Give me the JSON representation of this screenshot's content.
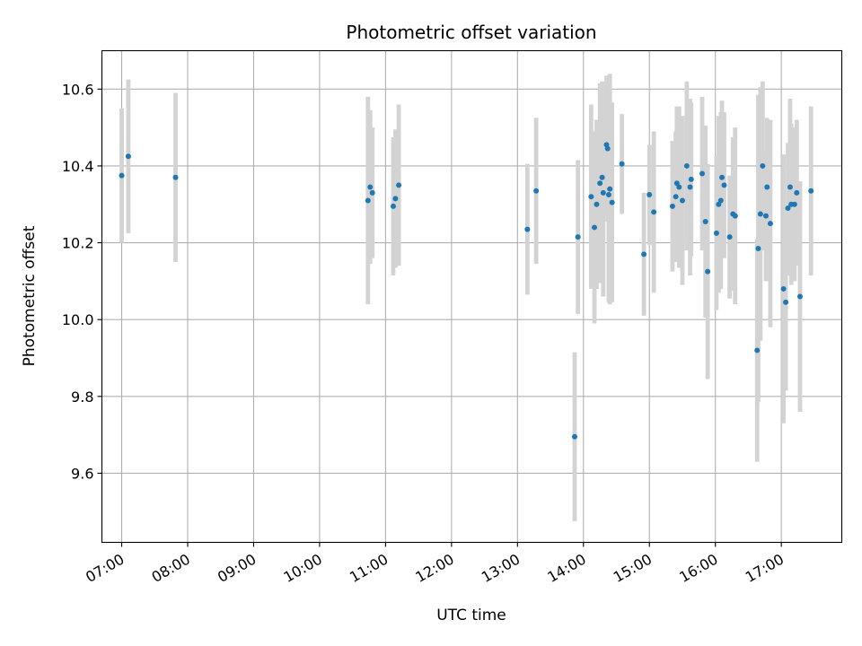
{
  "chart_data": {
    "type": "scatter",
    "title": "Photometric offset variation",
    "xlabel": "UTC time",
    "ylabel": "Photometric offset",
    "xlim": [
      "06:42",
      "17:55"
    ],
    "ylim": [
      9.42,
      10.7
    ],
    "x_ticks": [
      "07:00",
      "08:00",
      "09:00",
      "10:00",
      "11:00",
      "12:00",
      "13:00",
      "14:00",
      "15:00",
      "16:00",
      "17:00"
    ],
    "y_ticks": [
      "9.6",
      "9.8",
      "10.0",
      "10.2",
      "10.4",
      "10.6"
    ],
    "grid": true,
    "marker_color": "#1f77b4",
    "errorbar_color": "#d3d3d3",
    "series": [
      {
        "x": [
          "07:00",
          "07:06",
          "07:49",
          "10:44",
          "10:46",
          "10:48",
          "11:07",
          "11:09",
          "11:12",
          "13:09",
          "13:17",
          "13:52",
          "13:55",
          "14:07",
          "14:10",
          "14:12",
          "14:15",
          "14:17",
          "14:18",
          "14:21",
          "14:22",
          "14:23",
          "14:24",
          "14:26",
          "14:35",
          "14:55",
          "15:00",
          "15:04",
          "15:21",
          "15:24",
          "15:25",
          "15:27",
          "15:30",
          "15:34",
          "15:37",
          "15:38",
          "15:48",
          "15:51",
          "15:53",
          "16:01",
          "16:03",
          "16:05",
          "16:06",
          "16:08",
          "16:13",
          "16:16",
          "16:18",
          "16:38",
          "16:39",
          "16:41",
          "16:43",
          "16:46",
          "16:47",
          "16:50",
          "17:02",
          "17:04",
          "17:06",
          "17:08",
          "17:09",
          "17:12",
          "17:14",
          "17:17",
          "17:27"
        ],
        "y": [
          10.375,
          10.425,
          10.37,
          10.31,
          10.345,
          10.33,
          10.295,
          10.315,
          10.35,
          10.235,
          10.335,
          9.695,
          10.215,
          10.32,
          10.24,
          10.3,
          10.355,
          10.37,
          10.33,
          10.455,
          10.445,
          10.325,
          10.34,
          10.305,
          10.405,
          10.17,
          10.325,
          10.28,
          10.295,
          10.32,
          10.355,
          10.345,
          10.31,
          10.4,
          10.345,
          10.365,
          10.38,
          10.255,
          10.125,
          10.225,
          10.3,
          10.31,
          10.37,
          10.35,
          10.215,
          10.275,
          10.27,
          9.92,
          10.185,
          10.275,
          10.4,
          10.27,
          10.345,
          10.25,
          10.08,
          10.045,
          10.29,
          10.345,
          10.3,
          10.3,
          10.33,
          10.06,
          10.335
        ],
        "yerr": [
          0.175,
          0.2,
          0.22,
          0.27,
          0.2,
          0.17,
          0.18,
          0.18,
          0.21,
          0.17,
          0.19,
          0.22,
          0.2,
          0.24,
          0.25,
          0.22,
          0.26,
          0.25,
          0.27,
          0.18,
          0.19,
          0.28,
          0.3,
          0.26,
          0.13,
          0.16,
          0.13,
          0.21,
          0.17,
          0.17,
          0.2,
          0.21,
          0.22,
          0.22,
          0.23,
          0.2,
          0.2,
          0.25,
          0.28,
          0.2,
          0.23,
          0.23,
          0.2,
          0.19,
          0.16,
          0.2,
          0.23,
          0.29,
          0.4,
          0.33,
          0.22,
          0.17,
          0.18,
          0.27,
          0.35,
          0.23,
          0.17,
          0.23,
          0.21,
          0.2,
          0.19,
          0.3,
          0.22
        ]
      }
    ]
  }
}
